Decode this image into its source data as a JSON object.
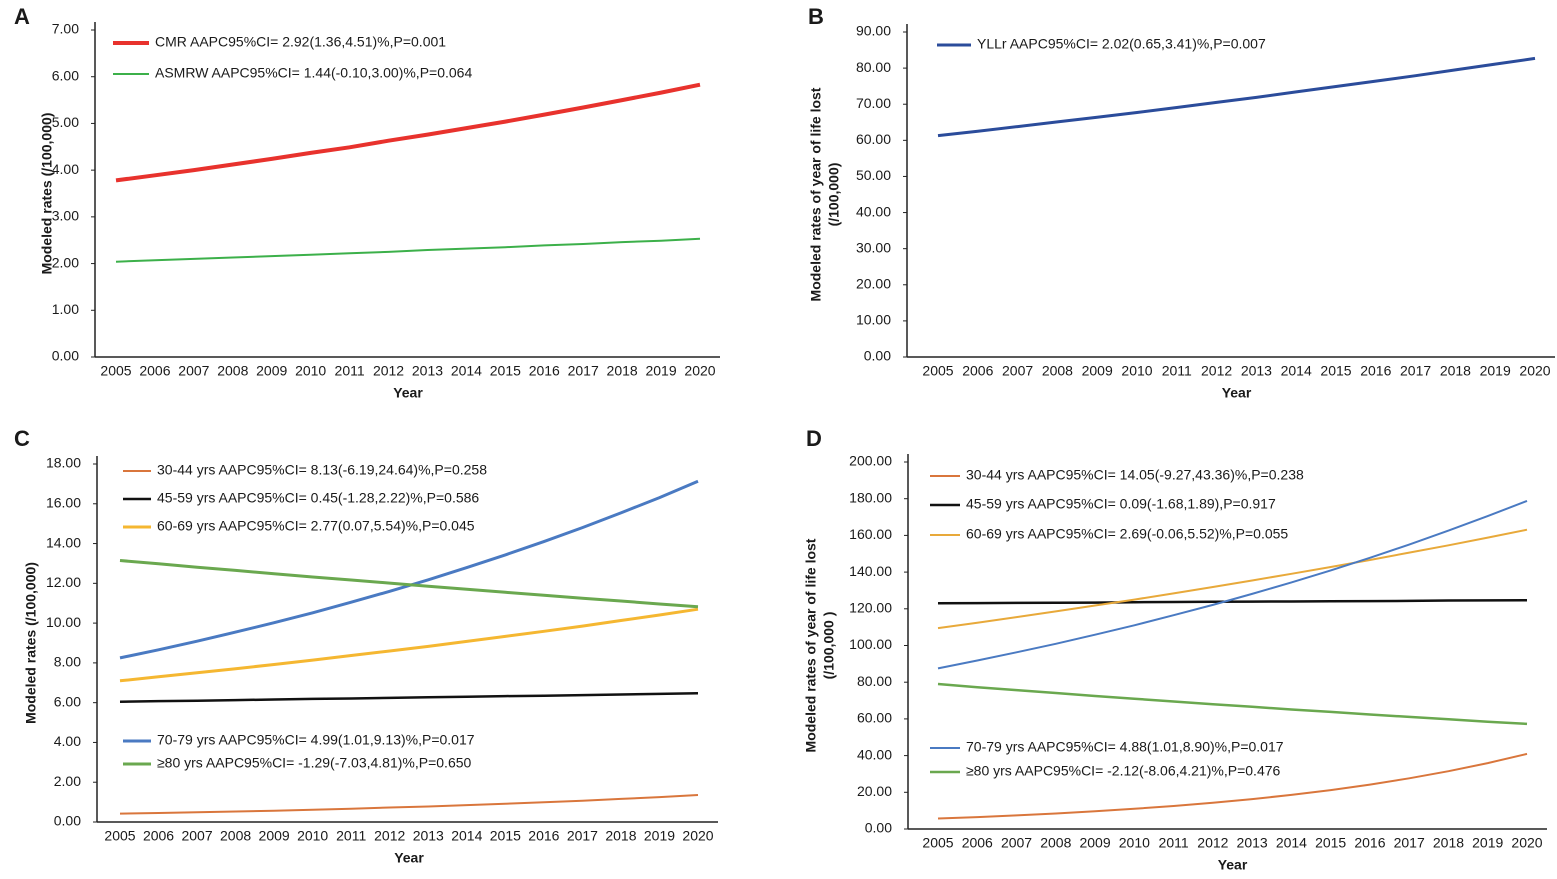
{
  "chart_data": [
    {
      "type": "line",
      "label": "A",
      "xlabel": "Year",
      "ylabel": [
        "Modeled rates (/100,000)"
      ],
      "categories": [
        "2005",
        "2006",
        "2007",
        "2008",
        "2009",
        "2010",
        "2011",
        "2012",
        "2013",
        "2014",
        "2015",
        "2016",
        "2017",
        "2018",
        "2019",
        "2020"
      ],
      "ylim": [
        0,
        7
      ],
      "yticks": [
        {
          "value": 0,
          "label": "0.00"
        },
        {
          "value": 1,
          "label": "1.00"
        },
        {
          "value": 2,
          "label": "2.00"
        },
        {
          "value": 3,
          "label": "3.00"
        },
        {
          "value": 4,
          "label": "4.00"
        },
        {
          "value": 5,
          "label": "5.00"
        },
        {
          "value": 6,
          "label": "6.00"
        },
        {
          "value": 7,
          "label": "7.00"
        }
      ],
      "series": [
        {
          "name": "CMR AAPC95%CI= 2.92(1.36,4.51)%,P=0.001",
          "color": "#e8322d",
          "values": [
            3.78,
            3.89,
            4.0,
            4.12,
            4.24,
            4.37,
            4.49,
            4.63,
            4.76,
            4.9,
            5.04,
            5.19,
            5.34,
            5.5,
            5.66,
            5.83
          ]
        },
        {
          "name": "ASMRW AAPC95%CI=  1.44(-0.10,3.00)%,P=0.064",
          "color": "#3cb04a",
          "values": [
            2.04,
            2.07,
            2.1,
            2.13,
            2.16,
            2.19,
            2.22,
            2.25,
            2.29,
            2.32,
            2.35,
            2.39,
            2.42,
            2.46,
            2.49,
            2.53
          ]
        }
      ]
    },
    {
      "type": "line",
      "label": "B",
      "xlabel": "Year",
      "ylabel": [
        "Modeled rates of year of life lost",
        "(/100,000)"
      ],
      "categories": [
        "2005",
        "2006",
        "2007",
        "2008",
        "2009",
        "2010",
        "2011",
        "2012",
        "2013",
        "2014",
        "2015",
        "2016",
        "2017",
        "2018",
        "2019",
        "2020"
      ],
      "ylim": [
        0,
        90
      ],
      "yticks": [
        {
          "value": 0,
          "label": "0.00"
        },
        {
          "value": 10,
          "label": "10.00"
        },
        {
          "value": 20,
          "label": "20.00"
        },
        {
          "value": 30,
          "label": "30.00"
        },
        {
          "value": 40,
          "label": "40.00"
        },
        {
          "value": 50,
          "label": "50.00"
        },
        {
          "value": 60,
          "label": "60.00"
        },
        {
          "value": 70,
          "label": "70.00"
        },
        {
          "value": 80,
          "label": "80.00"
        },
        {
          "value": 90,
          "label": "90.00"
        }
      ],
      "series": [
        {
          "name": "YLLr AAPC95%CI=  2.02(0.65,3.41)%,P=0.007",
          "color": "#2b4c9b",
          "values": [
            61.3,
            62.5,
            63.8,
            65.1,
            66.4,
            67.7,
            69.1,
            70.5,
            71.9,
            73.4,
            74.9,
            76.4,
            77.9,
            79.5,
            81.1,
            82.7
          ]
        }
      ]
    },
    {
      "type": "line",
      "label": "C",
      "xlabel": "Year",
      "ylabel": [
        "Modeled rates (/100,000)"
      ],
      "categories": [
        "2005",
        "2006",
        "2007",
        "2008",
        "2009",
        "2010",
        "2011",
        "2012",
        "2013",
        "2014",
        "2015",
        "2016",
        "2017",
        "2018",
        "2019",
        "2020"
      ],
      "ylim": [
        0,
        18
      ],
      "yticks": [
        {
          "value": 0,
          "label": "0.00"
        },
        {
          "value": 2,
          "label": "2.00"
        },
        {
          "value": 4,
          "label": "4.00"
        },
        {
          "value": 6,
          "label": "6.00"
        },
        {
          "value": 8,
          "label": "8.00"
        },
        {
          "value": 10,
          "label": "10.00"
        },
        {
          "value": 12,
          "label": "12.00"
        },
        {
          "value": 14,
          "label": "14.00"
        },
        {
          "value": 16,
          "label": "16.00"
        },
        {
          "value": 18,
          "label": "18.00"
        }
      ],
      "series": [
        {
          "name": "30-44 yrs AAPC95%CI=  8.13(-6.19,24.64)%,P=0.258",
          "color": "#d9763c",
          "values": [
            0.42,
            0.45,
            0.49,
            0.53,
            0.57,
            0.62,
            0.67,
            0.73,
            0.78,
            0.85,
            0.92,
            0.99,
            1.07,
            1.16,
            1.25,
            1.36
          ]
        },
        {
          "name": "45-59 yrs AAPC95%CI=  0.45(-1.28,2.22)%,P=0.586",
          "color": "#111111",
          "values": [
            6.05,
            6.08,
            6.1,
            6.13,
            6.16,
            6.19,
            6.21,
            6.24,
            6.27,
            6.3,
            6.33,
            6.35,
            6.38,
            6.41,
            6.44,
            6.47
          ]
        },
        {
          "name": "60-69 yrs AAPC95%CI=  2.77(0.07,5.54)%,P=0.045",
          "color": "#f5b731",
          "values": [
            7.1,
            7.3,
            7.5,
            7.71,
            7.92,
            8.14,
            8.37,
            8.6,
            8.83,
            9.08,
            9.33,
            9.59,
            9.85,
            10.13,
            10.41,
            10.7
          ]
        },
        {
          "name": "70-79 yrs AAPC95%CI=  4.99(1.01,9.13)%,P=0.017",
          "color": "#4a7ac2",
          "values": [
            8.25,
            8.66,
            9.09,
            9.55,
            10.02,
            10.52,
            11.05,
            11.6,
            12.18,
            12.79,
            13.43,
            14.1,
            14.8,
            15.54,
            16.31,
            17.13
          ]
        },
        {
          "name": "≥80 yrs AAPC95%CI= -1.29(-7.03,4.81)%,P=0.650",
          "color": "#6aa84f",
          "values": [
            13.15,
            12.98,
            12.81,
            12.65,
            12.48,
            12.32,
            12.17,
            12.01,
            11.85,
            11.7,
            11.55,
            11.4,
            11.25,
            11.11,
            10.96,
            10.82
          ]
        }
      ]
    },
    {
      "type": "line",
      "label": "D",
      "xlabel": "Year",
      "ylabel": [
        "Modeled rates of year of life lost",
        "(/100,000 )"
      ],
      "categories": [
        "2005",
        "2006",
        "2007",
        "2008",
        "2009",
        "2010",
        "2011",
        "2012",
        "2013",
        "2014",
        "2015",
        "2016",
        "2017",
        "2018",
        "2019",
        "2020"
      ],
      "ylim": [
        0,
        200
      ],
      "yticks": [
        {
          "value": 0,
          "label": "0.00"
        },
        {
          "value": 20,
          "label": "20.00"
        },
        {
          "value": 40,
          "label": "40.00"
        },
        {
          "value": 60,
          "label": "60.00"
        },
        {
          "value": 80,
          "label": "80.00"
        },
        {
          "value": 100,
          "label": "100.00"
        },
        {
          "value": 120,
          "label": "120.00"
        },
        {
          "value": 140,
          "label": "140.00"
        },
        {
          "value": 160,
          "label": "160.00"
        },
        {
          "value": 180,
          "label": "180.00"
        },
        {
          "value": 200,
          "label": "200.00"
        }
      ],
      "series": [
        {
          "name": "30-44 yrs AAPC95%CI= 14.05(-9.27,43.36)%,P=0.238",
          "color": "#d9763c",
          "values": [
            5.7,
            6.5,
            7.41,
            8.46,
            9.64,
            11.0,
            12.54,
            14.31,
            16.32,
            18.61,
            21.22,
            24.21,
            27.61,
            31.49,
            35.91,
            40.95
          ]
        },
        {
          "name": "45-59 yrs AAPC95%CI=  0.09(-1.68,1.89),P=0.917",
          "color": "#111111",
          "values": [
            123.0,
            123.1,
            123.2,
            123.3,
            123.4,
            123.6,
            123.7,
            123.8,
            123.9,
            124.0,
            124.1,
            124.2,
            124.3,
            124.5,
            124.6,
            124.7
          ]
        },
        {
          "name": "60-69 yrs AAPC95%CI= 2.69(-0.06,5.52)%,P=0.055",
          "color": "#e8a93a",
          "values": [
            109.5,
            112.4,
            115.5,
            118.6,
            121.8,
            125.0,
            128.4,
            131.9,
            135.4,
            139.1,
            142.8,
            146.6,
            150.6,
            154.6,
            158.8,
            163.1
          ]
        },
        {
          "name": "70-79 yrs AAPC95%CI=  4.88(1.01,8.90)%,P=0.017",
          "color": "#4a7ac2",
          "values": [
            87.5,
            91.8,
            96.3,
            100.9,
            105.9,
            111.0,
            116.5,
            122.1,
            128.1,
            134.4,
            140.9,
            147.8,
            155.0,
            162.6,
            170.5,
            178.8
          ]
        },
        {
          "name": "≥80 yrs AAPC95%CI= -2.12(-8.06,4.21)%,P=0.476",
          "color": "#6aa84f",
          "values": [
            79.0,
            77.3,
            75.7,
            74.1,
            72.5,
            71.0,
            69.5,
            68.0,
            66.6,
            65.1,
            63.8,
            62.4,
            61.1,
            59.8,
            58.5,
            57.3
          ]
        }
      ]
    }
  ]
}
